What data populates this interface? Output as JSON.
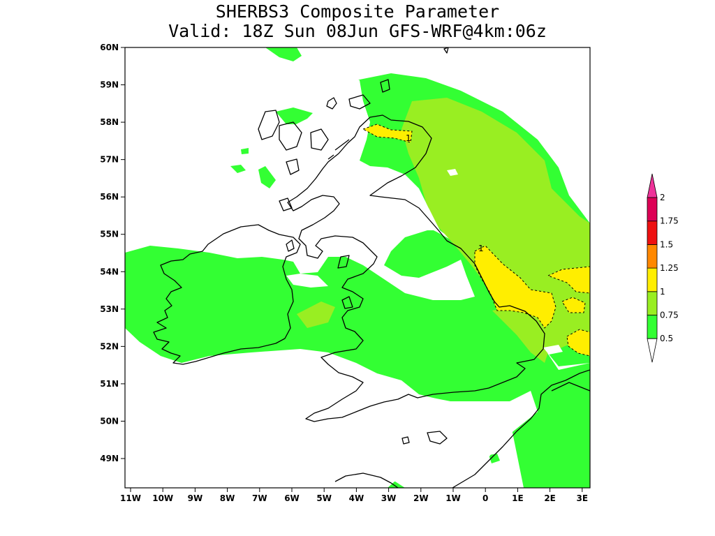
{
  "title_line1": "SHERBS3 Composite Parameter",
  "title_line2": "Valid: 18Z Sun 08Jun GFS-WRF@4km:06z",
  "axes": {
    "x_ticks": [
      "11W",
      "10W",
      "9W",
      "8W",
      "7W",
      "6W",
      "5W",
      "4W",
      "3W",
      "2W",
      "1W",
      "0",
      "1E",
      "2E",
      "3E"
    ],
    "y_ticks": [
      "49N",
      "50N",
      "51N",
      "52N",
      "53N",
      "54N",
      "55N",
      "56N",
      "57N",
      "58N",
      "59N",
      "60N"
    ]
  },
  "contour_labels": [
    "1",
    "1"
  ],
  "colorbar": {
    "labels": [
      "0.5",
      "0.75",
      "1",
      "1.25",
      "1.5",
      "1.75",
      "2"
    ],
    "colors": [
      "#33ff33",
      "#99ee22",
      "#ffee00",
      "#ff8800",
      "#ee1111",
      "#dd0055",
      "#ee3399"
    ],
    "under_color": "#ffffff"
  },
  "map_colors": {
    "green": "#33ff33",
    "lightgreen": "#99ee22",
    "yellow": "#ffee00"
  }
}
